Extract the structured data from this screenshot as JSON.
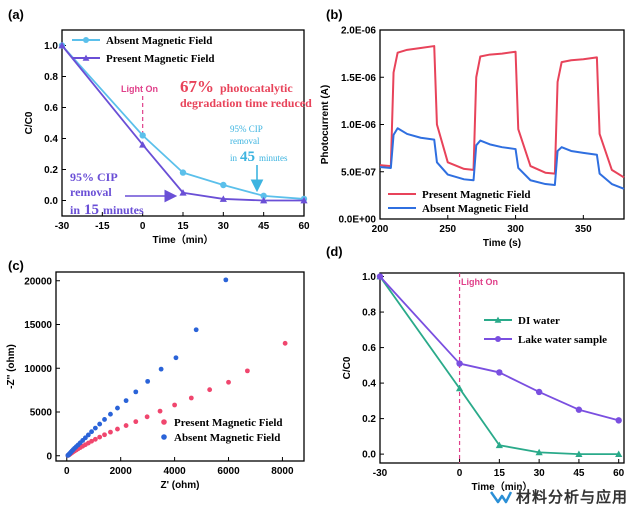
{
  "chart_data": [
    {
      "panel": "(a)",
      "type": "line",
      "xlabel": "Time（min）",
      "ylabel": "C/C0",
      "xlim": [
        -30,
        60
      ],
      "ylim": [
        -0.1,
        1.1
      ],
      "xticks": [
        -30,
        -15,
        0,
        15,
        30,
        45,
        60
      ],
      "yticks": [
        0.0,
        0.2,
        0.4,
        0.6,
        0.8,
        1.0
      ],
      "ytick_labels": [
        "0.0",
        "0.2",
        "0.4",
        "0.6",
        "0.8",
        "1.0"
      ],
      "legend_position": "top-left",
      "series": [
        {
          "name": "Absent Magnetic Field",
          "color": "#5bc0eb",
          "marker": "circle",
          "x": [
            -30,
            0,
            15,
            30,
            45,
            60
          ],
          "y": [
            1.0,
            0.42,
            0.18,
            0.1,
            0.03,
            0.01
          ]
        },
        {
          "name": "Present Magnetic Field",
          "color": "#6a4fd6",
          "marker": "triangle",
          "x": [
            -30,
            0,
            15,
            30,
            45,
            60
          ],
          "y": [
            1.0,
            0.36,
            0.05,
            0.01,
            0.0,
            0.0
          ]
        }
      ],
      "annotations": {
        "light_on": "Light On",
        "reduction_pct": "67%",
        "reduction_l1": "photocatalytic",
        "reduction_l2": "degradation time reduced",
        "absent_l1": "95% CIP",
        "absent_l2": "removal",
        "absent_l3a": "in",
        "absent_l3b": "45",
        "absent_l3c": "minutes",
        "present_l1": "95% CIP",
        "present_l2": "removal",
        "present_l3a": "in",
        "present_l3b": "15",
        "present_l3c": "minutes"
      }
    },
    {
      "panel": "(b)",
      "type": "line",
      "xlabel": "Time (s)",
      "ylabel": "Photocurrent (A)",
      "xlim": [
        200,
        380
      ],
      "ylim": [
        0,
        2e-06
      ],
      "xticks": [
        200,
        250,
        300,
        350
      ],
      "yticks": [
        0,
        5e-07,
        1e-06,
        1.5e-06,
        2e-06
      ],
      "ytick_labels": [
        "0.0E+00",
        "5.0E-07",
        "1.0E-06",
        "1.5E-06",
        "2.0E-06"
      ],
      "legend_position": "bottom-left",
      "series": [
        {
          "name": "Present Magnetic Field",
          "color": "#e8435a",
          "x": [
            200,
            208,
            210,
            213,
            220,
            230,
            240,
            242,
            250,
            262,
            269,
            271,
            274,
            281,
            290,
            300,
            302,
            311,
            322,
            329,
            331,
            334,
            341,
            350,
            360,
            362,
            371,
            380
          ],
          "y": [
            5.7e-07,
            5.6e-07,
            1.55e-06,
            1.76e-06,
            1.79e-06,
            1.81e-06,
            1.83e-06,
            1e-06,
            6e-07,
            5.3e-07,
            5.2e-07,
            1.5e-06,
            1.72e-06,
            1.74e-06,
            1.75e-06,
            1.77e-06,
            9.5e-07,
            5.6e-07,
            4.9e-07,
            4.8e-07,
            1.45e-06,
            1.66e-06,
            1.68e-06,
            1.69e-06,
            1.71e-06,
            9e-07,
            5.2e-07,
            4.4e-07
          ]
        },
        {
          "name": "Absent Magnetic Field",
          "color": "#2f6fe0",
          "x": [
            200,
            208,
            210,
            213,
            220,
            230,
            240,
            242,
            250,
            262,
            269,
            271,
            274,
            281,
            290,
            300,
            302,
            311,
            322,
            329,
            331,
            334,
            341,
            350,
            360,
            362,
            371,
            380
          ],
          "y": [
            5.5e-07,
            5.4e-07,
            8.9e-07,
            9.6e-07,
            9e-07,
            8.6e-07,
            8.4e-07,
            6e-07,
            4.7e-07,
            4.2e-07,
            4.1e-07,
            7.8e-07,
            8.3e-07,
            7.9e-07,
            7.6e-07,
            7.4e-07,
            5.4e-07,
            4.1e-07,
            3.7e-07,
            3.6e-07,
            7.2e-07,
            7.6e-07,
            7.2e-07,
            7e-07,
            6.8e-07,
            4.8e-07,
            3.7e-07,
            3.2e-07
          ]
        }
      ]
    },
    {
      "panel": "(c)",
      "type": "scatter",
      "xlabel": "Z' (ohm)",
      "ylabel": "-Z'' (ohm)",
      "xlim": [
        -400,
        8800
      ],
      "ylim": [
        -600,
        21000
      ],
      "xticks": [
        0,
        2000,
        4000,
        6000,
        8000
      ],
      "yticks": [
        0,
        5000,
        10000,
        15000,
        20000
      ],
      "legend_position": "bottom-right",
      "series": [
        {
          "name": "Present Magnetic Field",
          "color": "#f0466e",
          "x": [
            40,
            60,
            80,
            100,
            130,
            160,
            200,
            240,
            290,
            350,
            420,
            500,
            590,
            690,
            800,
            920,
            1060,
            1220,
            1400,
            1620,
            1880,
            2200,
            2560,
            2980,
            3460,
            4000,
            4620,
            5300,
            6000,
            6700,
            8100
          ],
          "y": [
            30,
            60,
            100,
            150,
            210,
            280,
            360,
            450,
            550,
            660,
            790,
            930,
            1090,
            1260,
            1450,
            1660,
            1880,
            2130,
            2400,
            2700,
            3050,
            3450,
            3900,
            4450,
            5100,
            5800,
            6600,
            7550,
            8400,
            9700,
            12850
          ]
        },
        {
          "name": "Absent Magnetic Field",
          "color": "#2a63d8",
          "x": [
            40,
            60,
            80,
            100,
            130,
            160,
            200,
            240,
            290,
            350,
            420,
            500,
            590,
            690,
            800,
            920,
            1060,
            1220,
            1400,
            1620,
            1880,
            2200,
            2560,
            3000,
            3500,
            4050,
            4800,
            5900
          ],
          "y": [
            40,
            90,
            150,
            230,
            320,
            430,
            560,
            700,
            860,
            1040,
            1240,
            1480,
            1750,
            2050,
            2380,
            2750,
            3160,
            3620,
            4150,
            4750,
            5450,
            6300,
            7300,
            8500,
            9900,
            11200,
            14400,
            20100
          ]
        }
      ]
    },
    {
      "panel": "(d)",
      "type": "line",
      "xlabel": "Time（min）",
      "ylabel": "C/C0",
      "xlim": [
        -30,
        62
      ],
      "ylim": [
        -0.05,
        1.02
      ],
      "xticks": [
        -30,
        0,
        15,
        30,
        45,
        60
      ],
      "xtick_labels": [
        "-30",
        "0",
        "15",
        "30",
        "45",
        "60"
      ],
      "yticks": [
        0.0,
        0.2,
        0.4,
        0.6,
        0.8,
        1.0
      ],
      "ytick_labels": [
        "0.0",
        "0.2",
        "0.4",
        "0.6",
        "0.8",
        "1.0"
      ],
      "legend_position": "top-right",
      "series": [
        {
          "name": "DI water",
          "color": "#2aaa8a",
          "marker": "triangle",
          "x": [
            -30,
            0,
            15,
            30,
            45,
            60
          ],
          "y": [
            1.0,
            0.37,
            0.05,
            0.01,
            0.0,
            0.0
          ]
        },
        {
          "name": "Lake water sample",
          "color": "#7a4fe0",
          "marker": "circle",
          "x": [
            -30,
            0,
            15,
            30,
            45,
            60
          ],
          "y": [
            1.0,
            0.51,
            0.46,
            0.35,
            0.25,
            0.19
          ]
        }
      ],
      "annotations": {
        "light_on": "Light On"
      }
    }
  ],
  "watermark": {
    "text": "材料分析与应用"
  }
}
